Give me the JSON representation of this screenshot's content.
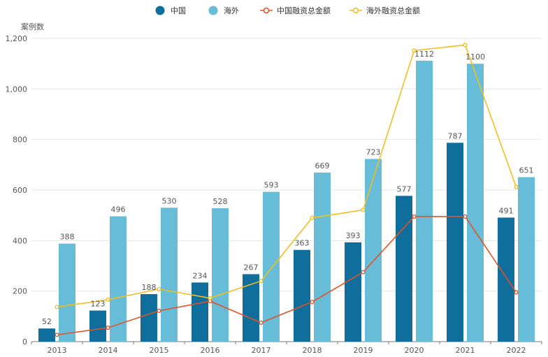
{
  "chart_data": {
    "type": "bar",
    "ylabel": "案例数",
    "ylim": [
      0,
      1200
    ],
    "yticks": [
      0,
      200,
      400,
      600,
      800,
      1000,
      1200
    ],
    "ytick_labels": [
      "0",
      "200",
      "400",
      "600",
      "800",
      "1,000",
      "1,200"
    ],
    "grid": true,
    "legend_position": "top-center",
    "categories": [
      "2013",
      "2014",
      "2015",
      "2016",
      "2017",
      "2018",
      "2019",
      "2020",
      "2021",
      "2022"
    ],
    "series": [
      {
        "name": "中国",
        "kind": "bar",
        "color": "#0f6e9c",
        "values": [
          52,
          123,
          188,
          234,
          267,
          363,
          393,
          577,
          787,
          491
        ]
      },
      {
        "name": "海外",
        "kind": "bar",
        "color": "#67bdd8",
        "values": [
          388,
          496,
          530,
          528,
          593,
          669,
          723,
          1112,
          1100,
          651
        ]
      },
      {
        "name": "中国融资总金额",
        "kind": "line",
        "color": "#e0532a",
        "values": [
          27,
          55,
          122,
          160,
          75,
          157,
          275,
          495,
          495,
          195
        ]
      },
      {
        "name": "海外融资总金额",
        "kind": "line",
        "color": "#f0bf1f",
        "values": [
          137,
          166,
          208,
          172,
          240,
          490,
          521,
          1152,
          1174,
          612
        ]
      }
    ]
  }
}
